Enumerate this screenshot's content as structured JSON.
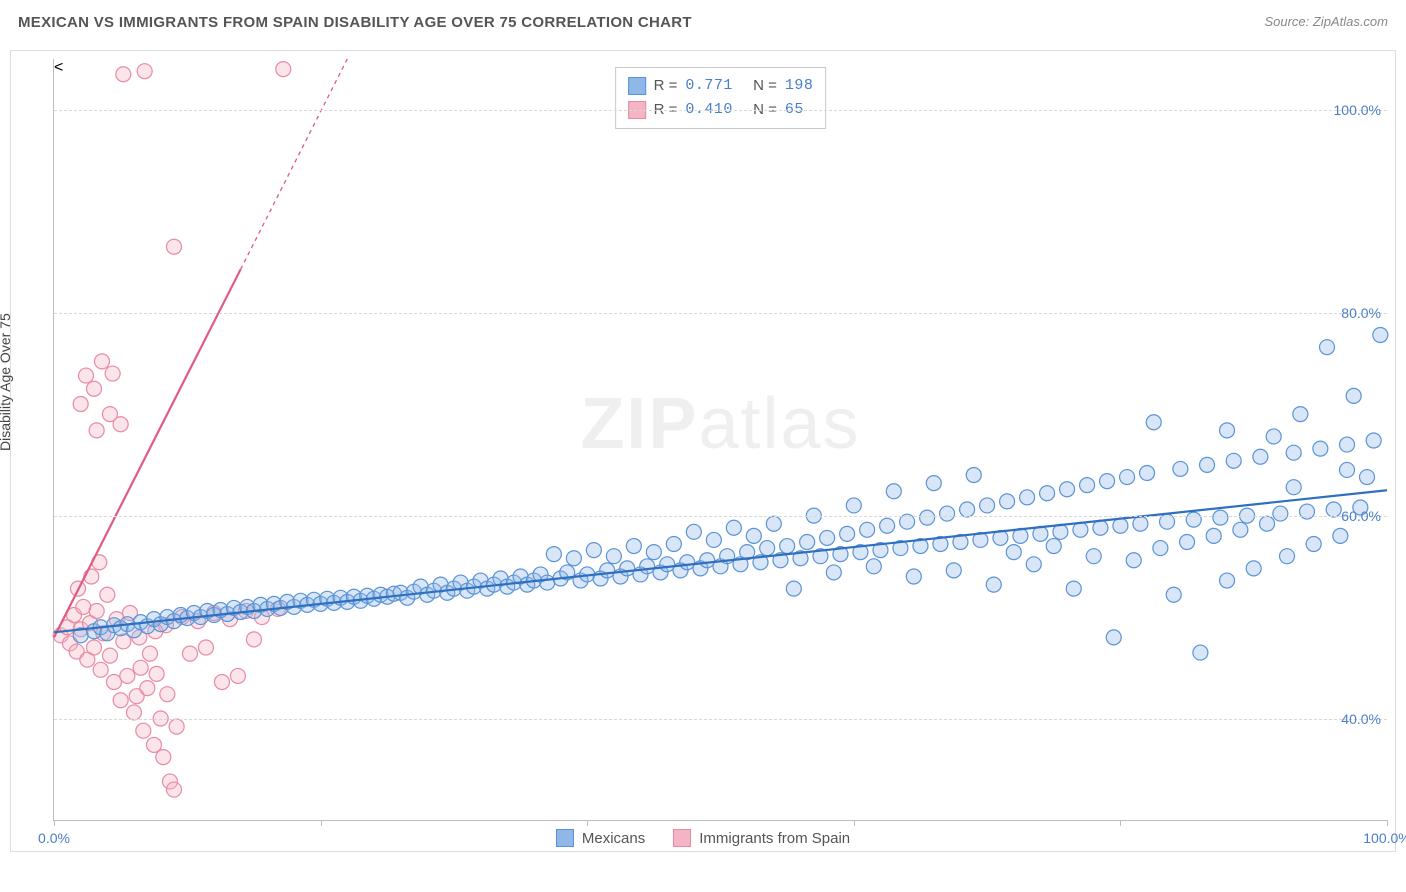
{
  "header": {
    "title": "MEXICAN VS IMMIGRANTS FROM SPAIN DISABILITY AGE OVER 75 CORRELATION CHART",
    "source_prefix": "Source: ",
    "source_name": "ZipAtlas.com"
  },
  "chart": {
    "type": "scatter",
    "ylabel": "Disability Age Over 75",
    "background_color": "#ffffff",
    "grid_color": "#d8d8d8",
    "axis_color": "#bdbdbd",
    "tick_label_color": "#4a7ec9",
    "xlim": [
      0,
      100
    ],
    "ylim": [
      30,
      105
    ],
    "x_ticks": [
      0,
      20,
      40,
      60,
      80,
      100
    ],
    "x_tick_labels": [
      "0.0%",
      "",
      "",
      "",
      "",
      "100.0%"
    ],
    "y_ticks": [
      40,
      60,
      80,
      100
    ],
    "y_tick_labels": [
      "40.0%",
      "60.0%",
      "80.0%",
      "100.0%"
    ],
    "marker_radius": 7.5,
    "marker_fill_opacity": 0.35,
    "marker_stroke_width": 1.2,
    "trend_line_width": 2.2,
    "watermark_zip": "ZIP",
    "watermark_atlas": "atlas"
  },
  "legend_top": {
    "rows": [
      {
        "series_key": "mexicans",
        "r_label": "R =",
        "r_value": "0.771",
        "n_label": "N =",
        "n_value": "198"
      },
      {
        "series_key": "spain",
        "r_label": "R =",
        "r_value": "0.410",
        "n_label": "N =",
        "n_value": " 65"
      }
    ]
  },
  "legend_bottom": {
    "items": [
      {
        "series_key": "mexicans",
        "label": "Mexicans"
      },
      {
        "series_key": "spain",
        "label": "Immigrants from Spain"
      }
    ]
  },
  "series": {
    "mexicans": {
      "fill_color": "#8fb8e8",
      "stroke_color": "#5a93d6",
      "line_color": "#2f6fc0",
      "trend": {
        "x1": 0,
        "y1": 48.5,
        "x2": 100,
        "y2": 62.5
      },
      "points": [
        [
          2,
          48.2
        ],
        [
          3,
          48.6
        ],
        [
          3.5,
          49.0
        ],
        [
          4,
          48.4
        ],
        [
          4.5,
          49.2
        ],
        [
          5,
          48.9
        ],
        [
          5.5,
          49.3
        ],
        [
          6,
          48.7
        ],
        [
          6.5,
          49.5
        ],
        [
          7,
          49.1
        ],
        [
          7.5,
          49.8
        ],
        [
          8,
          49.3
        ],
        [
          8.5,
          50.0
        ],
        [
          9,
          49.6
        ],
        [
          9.5,
          50.2
        ],
        [
          10,
          49.9
        ],
        [
          10.5,
          50.4
        ],
        [
          11,
          50.0
        ],
        [
          11.5,
          50.6
        ],
        [
          12,
          50.2
        ],
        [
          12.5,
          50.7
        ],
        [
          13,
          50.3
        ],
        [
          13.5,
          50.9
        ],
        [
          14,
          50.5
        ],
        [
          14.5,
          51.0
        ],
        [
          15,
          50.6
        ],
        [
          15.5,
          51.2
        ],
        [
          16,
          50.8
        ],
        [
          16.5,
          51.3
        ],
        [
          17,
          50.9
        ],
        [
          17.5,
          51.5
        ],
        [
          18,
          51.0
        ],
        [
          18.5,
          51.6
        ],
        [
          19,
          51.2
        ],
        [
          19.5,
          51.7
        ],
        [
          20,
          51.3
        ],
        [
          20.5,
          51.8
        ],
        [
          21,
          51.4
        ],
        [
          21.5,
          51.9
        ],
        [
          22,
          51.5
        ],
        [
          22.5,
          52.0
        ],
        [
          23,
          51.6
        ],
        [
          23.5,
          52.1
        ],
        [
          24,
          51.8
        ],
        [
          24.5,
          52.2
        ],
        [
          25,
          52.0
        ],
        [
          25.5,
          52.3
        ],
        [
          26,
          52.4
        ],
        [
          26.5,
          51.9
        ],
        [
          27,
          52.5
        ],
        [
          27.5,
          53.0
        ],
        [
          28,
          52.2
        ],
        [
          28.5,
          52.6
        ],
        [
          29,
          53.2
        ],
        [
          29.5,
          52.4
        ],
        [
          30,
          52.8
        ],
        [
          30.5,
          53.4
        ],
        [
          31,
          52.6
        ],
        [
          31.5,
          53.0
        ],
        [
          32,
          53.6
        ],
        [
          32.5,
          52.8
        ],
        [
          33,
          53.2
        ],
        [
          33.5,
          53.8
        ],
        [
          34,
          53.0
        ],
        [
          34.5,
          53.4
        ],
        [
          35,
          54.0
        ],
        [
          35.5,
          53.2
        ],
        [
          36,
          53.6
        ],
        [
          36.5,
          54.2
        ],
        [
          37,
          53.4
        ],
        [
          37.5,
          56.2
        ],
        [
          38,
          53.8
        ],
        [
          38.5,
          54.4
        ],
        [
          39,
          55.8
        ],
        [
          39.5,
          53.6
        ],
        [
          40,
          54.2
        ],
        [
          40.5,
          56.6
        ],
        [
          41,
          53.8
        ],
        [
          41.5,
          54.6
        ],
        [
          42,
          56.0
        ],
        [
          42.5,
          54.0
        ],
        [
          43,
          54.8
        ],
        [
          43.5,
          57.0
        ],
        [
          44,
          54.2
        ],
        [
          44.5,
          55.0
        ],
        [
          45,
          56.4
        ],
        [
          45.5,
          54.4
        ],
        [
          46,
          55.2
        ],
        [
          46.5,
          57.2
        ],
        [
          47,
          54.6
        ],
        [
          47.5,
          55.4
        ],
        [
          48,
          58.4
        ],
        [
          48.5,
          54.8
        ],
        [
          49,
          55.6
        ],
        [
          49.5,
          57.6
        ],
        [
          50,
          55.0
        ],
        [
          50.5,
          56.0
        ],
        [
          51,
          58.8
        ],
        [
          51.5,
          55.2
        ],
        [
          52,
          56.4
        ],
        [
          52.5,
          58.0
        ],
        [
          53,
          55.4
        ],
        [
          53.5,
          56.8
        ],
        [
          54,
          59.2
        ],
        [
          54.5,
          55.6
        ],
        [
          55,
          57.0
        ],
        [
          55.5,
          52.8
        ],
        [
          56,
          55.8
        ],
        [
          56.5,
          57.4
        ],
        [
          57,
          60.0
        ],
        [
          57.5,
          56.0
        ],
        [
          58,
          57.8
        ],
        [
          58.5,
          54.4
        ],
        [
          59,
          56.2
        ],
        [
          59.5,
          58.2
        ],
        [
          60,
          61.0
        ],
        [
          60.5,
          56.4
        ],
        [
          61,
          58.6
        ],
        [
          61.5,
          55.0
        ],
        [
          62,
          56.6
        ],
        [
          62.5,
          59.0
        ],
        [
          63,
          62.4
        ],
        [
          63.5,
          56.8
        ],
        [
          64,
          59.4
        ],
        [
          64.5,
          54.0
        ],
        [
          65,
          57.0
        ],
        [
          65.5,
          59.8
        ],
        [
          66,
          63.2
        ],
        [
          66.5,
          57.2
        ],
        [
          67,
          60.2
        ],
        [
          67.5,
          54.6
        ],
        [
          68,
          57.4
        ],
        [
          68.5,
          60.6
        ],
        [
          69,
          64.0
        ],
        [
          69.5,
          57.6
        ],
        [
          70,
          61.0
        ],
        [
          70.5,
          53.2
        ],
        [
          71,
          57.8
        ],
        [
          71.5,
          61.4
        ],
        [
          72,
          56.4
        ],
        [
          72.5,
          58.0
        ],
        [
          73,
          61.8
        ],
        [
          73.5,
          55.2
        ],
        [
          74,
          58.2
        ],
        [
          74.5,
          62.2
        ],
        [
          75,
          57.0
        ],
        [
          75.5,
          58.4
        ],
        [
          76,
          62.6
        ],
        [
          76.5,
          52.8
        ],
        [
          77,
          58.6
        ],
        [
          77.5,
          63.0
        ],
        [
          78,
          56.0
        ],
        [
          78.5,
          58.8
        ],
        [
          79,
          63.4
        ],
        [
          79.5,
          48.0
        ],
        [
          80,
          59.0
        ],
        [
          80.5,
          63.8
        ],
        [
          81,
          55.6
        ],
        [
          81.5,
          59.2
        ],
        [
          82,
          64.2
        ],
        [
          82.5,
          69.2
        ],
        [
          83,
          56.8
        ],
        [
          83.5,
          59.4
        ],
        [
          84,
          52.2
        ],
        [
          84.5,
          64.6
        ],
        [
          85,
          57.4
        ],
        [
          85.5,
          59.6
        ],
        [
          86,
          46.5
        ],
        [
          86.5,
          65.0
        ],
        [
          87,
          58.0
        ],
        [
          87.5,
          59.8
        ],
        [
          88,
          53.6
        ],
        [
          88.5,
          65.4
        ],
        [
          89,
          58.6
        ],
        [
          89.5,
          60.0
        ],
        [
          90,
          54.8
        ],
        [
          90.5,
          65.8
        ],
        [
          91,
          59.2
        ],
        [
          91.5,
          67.8
        ],
        [
          92,
          60.2
        ],
        [
          92.5,
          56.0
        ],
        [
          93,
          66.2
        ],
        [
          93.5,
          70.0
        ],
        [
          94,
          60.4
        ],
        [
          94.5,
          57.2
        ],
        [
          95,
          66.6
        ],
        [
          95.5,
          76.6
        ],
        [
          96,
          60.6
        ],
        [
          96.5,
          58.0
        ],
        [
          97,
          67.0
        ],
        [
          97.5,
          71.8
        ],
        [
          98,
          60.8
        ],
        [
          98.5,
          63.8
        ],
        [
          99,
          67.4
        ],
        [
          99.5,
          77.8
        ],
        [
          97,
          64.5
        ],
        [
          93,
          62.8
        ],
        [
          88,
          68.4
        ]
      ]
    },
    "spain": {
      "fill_color": "#f4b4c4",
      "stroke_color": "#e88aa2",
      "line_color": "#e05a82",
      "trend": {
        "x1": 0,
        "y1": 48.0,
        "x2": 22,
        "y2": 105.0
      },
      "trend_dash_after_x": 14,
      "points": [
        [
          0.5,
          48.2
        ],
        [
          1.0,
          49.0
        ],
        [
          1.2,
          47.4
        ],
        [
          1.5,
          50.2
        ],
        [
          1.7,
          46.6
        ],
        [
          2.0,
          48.8
        ],
        [
          2.2,
          51.0
        ],
        [
          2.5,
          45.8
        ],
        [
          2.7,
          49.4
        ],
        [
          3.0,
          47.0
        ],
        [
          3.2,
          50.6
        ],
        [
          3.5,
          44.8
        ],
        [
          3.7,
          48.4
        ],
        [
          4.0,
          52.2
        ],
        [
          4.2,
          46.2
        ],
        [
          4.5,
          43.6
        ],
        [
          4.7,
          49.8
        ],
        [
          5.0,
          41.8
        ],
        [
          5.2,
          47.6
        ],
        [
          5.5,
          44.2
        ],
        [
          5.7,
          50.4
        ],
        [
          6.0,
          40.6
        ],
        [
          6.2,
          42.2
        ],
        [
          6.5,
          45.0
        ],
        [
          6.7,
          38.8
        ],
        [
          7.0,
          43.0
        ],
        [
          7.2,
          46.4
        ],
        [
          7.5,
          37.4
        ],
        [
          7.7,
          44.4
        ],
        [
          8.0,
          40.0
        ],
        [
          8.2,
          36.2
        ],
        [
          8.5,
          42.4
        ],
        [
          8.7,
          33.8
        ],
        [
          9.0,
          33.0
        ],
        [
          9.2,
          39.2
        ],
        [
          2.8,
          54.0
        ],
        [
          3.4,
          55.4
        ],
        [
          1.8,
          52.8
        ],
        [
          2.0,
          71.0
        ],
        [
          3.0,
          72.5
        ],
        [
          4.2,
          70.0
        ],
        [
          3.6,
          75.2
        ],
        [
          2.4,
          73.8
        ],
        [
          5.0,
          69.0
        ],
        [
          4.4,
          74.0
        ],
        [
          3.2,
          68.4
        ],
        [
          5.2,
          103.5
        ],
        [
          6.8,
          103.8
        ],
        [
          9.0,
          86.5
        ],
        [
          17.2,
          104.0
        ],
        [
          8.4,
          49.2
        ],
        [
          9.6,
          50.0
        ],
        [
          10.8,
          49.6
        ],
        [
          12.0,
          50.4
        ],
        [
          13.2,
          49.8
        ],
        [
          14.4,
          50.6
        ],
        [
          15.6,
          50.0
        ],
        [
          16.8,
          50.8
        ],
        [
          6.4,
          48.0
        ],
        [
          7.6,
          48.6
        ],
        [
          10.2,
          46.4
        ],
        [
          11.4,
          47.0
        ],
        [
          12.6,
          43.6
        ],
        [
          13.8,
          44.2
        ],
        [
          15.0,
          47.8
        ]
      ]
    }
  }
}
